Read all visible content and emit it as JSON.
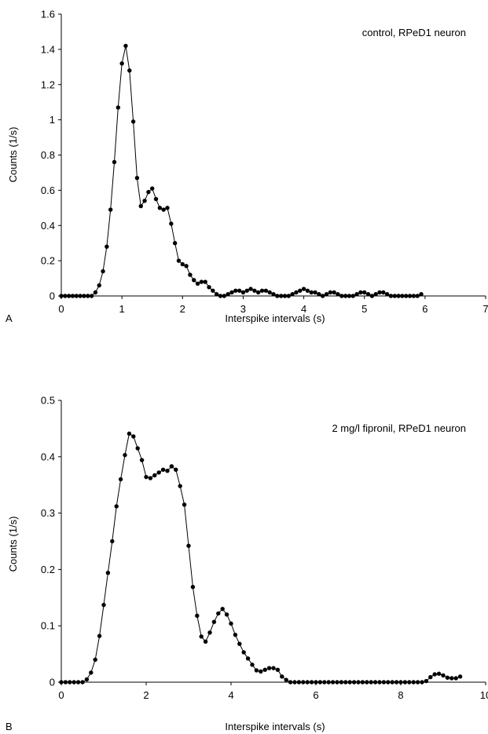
{
  "chart_data": [
    {
      "type": "line",
      "panel": "A",
      "annotation": "control, RPeD1 neuron",
      "xlabel": "Interspike intervals (s)",
      "ylabel": "Counts (1/s)",
      "xlim": [
        0,
        7
      ],
      "ylim": [
        0,
        1.6
      ],
      "xticks": [
        "0",
        "1",
        "2",
        "3",
        "4",
        "5",
        "6",
        "7"
      ],
      "yticks": [
        "0",
        "0.2",
        "0.4",
        "0.6",
        "0.8",
        "1",
        "1.2",
        "1.4",
        "1.6"
      ],
      "grid": false,
      "series": [
        {
          "x": [
            0.0,
            0.0625,
            0.125,
            0.1875,
            0.25,
            0.3125,
            0.375,
            0.4375,
            0.5,
            0.5625,
            0.625,
            0.6875,
            0.75,
            0.8125,
            0.875,
            0.9375,
            1.0,
            1.0625,
            1.125,
            1.1875,
            1.25,
            1.3125,
            1.375,
            1.4375,
            1.5,
            1.5625,
            1.625,
            1.6875,
            1.75,
            1.8125,
            1.875,
            1.9375,
            2.0,
            2.0625,
            2.125,
            2.1875,
            2.25,
            2.3125,
            2.375,
            2.4375,
            2.5,
            2.5625,
            2.625,
            2.6875,
            2.75,
            2.8125,
            2.875,
            2.9375,
            3.0,
            3.0625,
            3.125,
            3.1875,
            3.25,
            3.3125,
            3.375,
            3.4375,
            3.5,
            3.5625,
            3.625,
            3.6875,
            3.75,
            3.8125,
            3.875,
            3.9375,
            4.0,
            4.0625,
            4.125,
            4.1875,
            4.25,
            4.3125,
            4.375,
            4.4375,
            4.5,
            4.5625,
            4.625,
            4.6875,
            4.75,
            4.8125,
            4.875,
            4.9375,
            5.0,
            5.0625,
            5.125,
            5.1875,
            5.25,
            5.3125,
            5.375,
            5.4375,
            5.5,
            5.5625,
            5.625,
            5.6875,
            5.75,
            5.8125,
            5.875,
            5.9375
          ],
          "y": [
            0.0,
            0.0,
            0.0,
            0.0,
            0.0,
            0.0,
            0.0,
            0.0,
            0.0,
            0.02,
            0.06,
            0.14,
            0.28,
            0.49,
            0.76,
            1.07,
            1.32,
            1.42,
            1.28,
            0.99,
            0.67,
            0.51,
            0.54,
            0.59,
            0.61,
            0.55,
            0.5,
            0.49,
            0.5,
            0.41,
            0.3,
            0.2,
            0.18,
            0.17,
            0.12,
            0.09,
            0.07,
            0.08,
            0.08,
            0.05,
            0.03,
            0.01,
            0.0,
            0.0,
            0.01,
            0.02,
            0.03,
            0.03,
            0.02,
            0.03,
            0.04,
            0.03,
            0.02,
            0.03,
            0.03,
            0.02,
            0.01,
            0.0,
            0.0,
            0.0,
            0.0,
            0.01,
            0.02,
            0.03,
            0.04,
            0.03,
            0.02,
            0.02,
            0.01,
            0.0,
            0.01,
            0.02,
            0.02,
            0.01,
            0.0,
            0.0,
            0.0,
            0.0,
            0.01,
            0.02,
            0.02,
            0.01,
            0.0,
            0.01,
            0.02,
            0.02,
            0.01,
            0.0,
            0.0,
            0.0,
            0.0,
            0.0,
            0.0,
            0.0,
            0.0,
            0.01
          ]
        }
      ]
    },
    {
      "type": "line",
      "panel": "B",
      "annotation": "2 mg/l fipronil, RPeD1 neuron",
      "xlabel": "Interspike intervals (s)",
      "ylabel": "Counts (1/s)",
      "xlim": [
        0,
        10
      ],
      "ylim": [
        0,
        0.5
      ],
      "xticks": [
        "0",
        "2",
        "4",
        "6",
        "8",
        "10"
      ],
      "yticks": [
        "0",
        "0.1",
        "0.2",
        "0.3",
        "0.4",
        "0.5"
      ],
      "grid": false,
      "series": [
        {
          "x": [
            0.0,
            0.1,
            0.2,
            0.3,
            0.4,
            0.5,
            0.6,
            0.7,
            0.8,
            0.9,
            1.0,
            1.1,
            1.2,
            1.3,
            1.4,
            1.5,
            1.6,
            1.7,
            1.8,
            1.9,
            2.0,
            2.1,
            2.2,
            2.3,
            2.4,
            2.5,
            2.6,
            2.7,
            2.8,
            2.9,
            3.0,
            3.1,
            3.2,
            3.3,
            3.4,
            3.5,
            3.6,
            3.7,
            3.8,
            3.9,
            4.0,
            4.1,
            4.2,
            4.3,
            4.4,
            4.5,
            4.6,
            4.7,
            4.8,
            4.9,
            5.0,
            5.1,
            5.2,
            5.3,
            5.4,
            5.5,
            5.6,
            5.7,
            5.8,
            5.9,
            6.0,
            6.1,
            6.2,
            6.3,
            6.4,
            6.5,
            6.6,
            6.7,
            6.8,
            6.9,
            7.0,
            7.1,
            7.2,
            7.3,
            7.4,
            7.5,
            7.6,
            7.7,
            7.8,
            7.9,
            8.0,
            8.1,
            8.2,
            8.3,
            8.4,
            8.5,
            8.6,
            8.7,
            8.8,
            8.9,
            9.0,
            9.1,
            9.2,
            9.3,
            9.4
          ],
          "y": [
            0.0,
            0.0,
            0.0,
            0.0,
            0.0,
            0.0,
            0.005,
            0.017,
            0.04,
            0.082,
            0.137,
            0.194,
            0.25,
            0.312,
            0.36,
            0.403,
            0.441,
            0.436,
            0.415,
            0.394,
            0.364,
            0.362,
            0.367,
            0.372,
            0.377,
            0.375,
            0.383,
            0.377,
            0.348,
            0.315,
            0.242,
            0.169,
            0.118,
            0.081,
            0.072,
            0.088,
            0.107,
            0.122,
            0.13,
            0.12,
            0.104,
            0.084,
            0.068,
            0.053,
            0.042,
            0.031,
            0.021,
            0.019,
            0.022,
            0.025,
            0.025,
            0.022,
            0.01,
            0.004,
            0.0,
            0.0,
            0.0,
            0.0,
            0.0,
            0.0,
            0.0,
            0.0,
            0.0,
            0.0,
            0.0,
            0.0,
            0.0,
            0.0,
            0.0,
            0.0,
            0.0,
            0.0,
            0.0,
            0.0,
            0.0,
            0.0,
            0.0,
            0.0,
            0.0,
            0.0,
            0.0,
            0.0,
            0.0,
            0.0,
            0.0,
            0.0,
            0.002,
            0.009,
            0.014,
            0.015,
            0.012,
            0.008,
            0.007,
            0.007,
            0.01
          ]
        }
      ]
    }
  ]
}
